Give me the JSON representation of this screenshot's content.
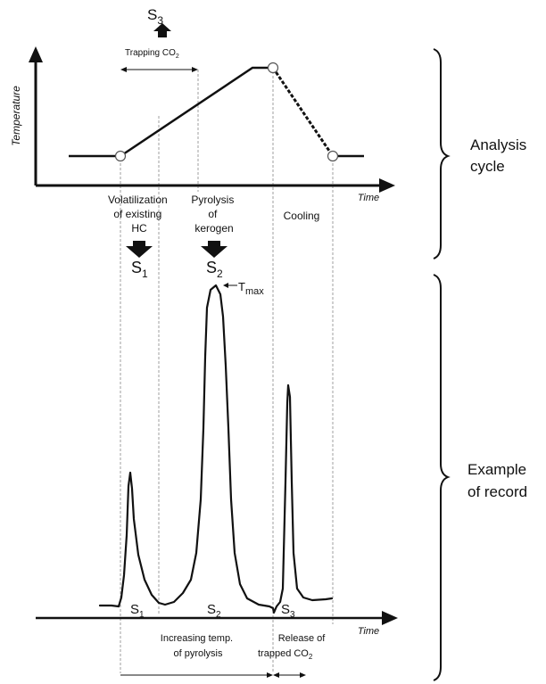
{
  "top_chart": {
    "y_axis_label": "Temperature",
    "x_axis_label": "Time",
    "s3_main": "S",
    "s3_sub": "3",
    "trapping_main": "Trapping CO",
    "trapping_sub": "2"
  },
  "phases": {
    "volatilization_line1": "Volatilization",
    "volatilization_line2": "of existing",
    "volatilization_line3": "HC",
    "pyrolysis_line1": "Pyrolysis",
    "pyrolysis_line2": "of",
    "pyrolysis_line3": "kerogen",
    "cooling": "Cooling"
  },
  "peaks_header": {
    "s1_main": "S",
    "s1_sub": "1",
    "s2_main": "S",
    "s2_sub": "2",
    "tmax_main": "T",
    "tmax_sub": "max"
  },
  "bottom_chart": {
    "x_axis_label": "Time",
    "s1_main": "S",
    "s1_sub": "1",
    "s2_main": "S",
    "s2_sub": "2",
    "s3_main": "S",
    "s3_sub": "3",
    "increasing_line1": "Increasing temp.",
    "increasing_line2": "of pyrolysis",
    "release_line1": "Release of",
    "release_main": "trapped CO",
    "release_sub": "2"
  },
  "side_labels": {
    "analysis_line1": "Analysis",
    "analysis_line2": "cycle",
    "example_line1": "Example",
    "example_line2": "of record"
  }
}
